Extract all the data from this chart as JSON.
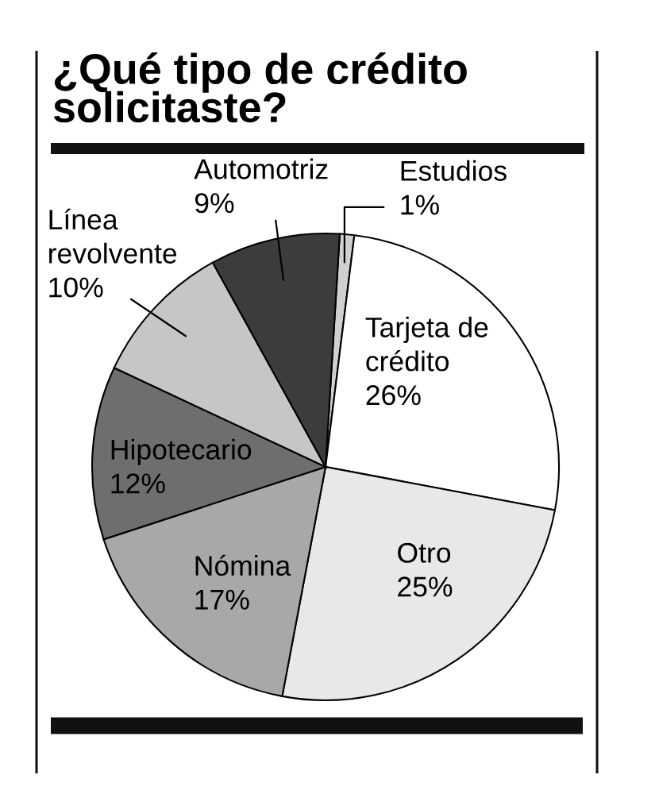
{
  "chart_data": {
    "type": "pie",
    "title": "¿Qué tipo de crédito\nsolicitaste?",
    "categories": [
      "Estudios",
      "Tarjeta de\ncrédito",
      "Otro",
      "Nómina",
      "Hipotecario",
      "Línea\nrevolvente",
      "Automotriz"
    ],
    "values": [
      1,
      26,
      25,
      17,
      12,
      10,
      9
    ],
    "colors": [
      "#d0d0d0",
      "#ffffff",
      "#e8e8e8",
      "#a8a8a8",
      "#6e6e6e",
      "#c6c6c6",
      "#3c3c3c"
    ],
    "value_labels": [
      "1%",
      "26%",
      "25%",
      "17%",
      "12%",
      "10%",
      "9%"
    ]
  }
}
